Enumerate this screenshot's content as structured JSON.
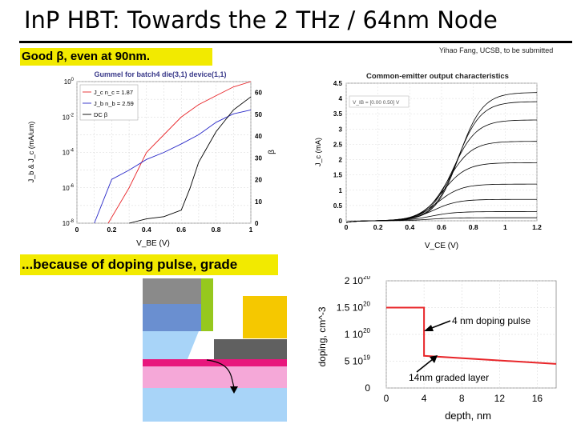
{
  "slide": {
    "title": "InP HBT: Towards the 2 THz / 64nm Node",
    "caption_top": "Good β, even at 90nm.",
    "caption_bottom": "...because of doping pulse, grade",
    "credit": "Yihao Fang, UCSB, to be submitted"
  },
  "colors": {
    "highlight": "#f2ea00",
    "red_series": "#e8262a",
    "blue_series": "#2a2ac8",
    "black_series": "#000000",
    "layer_grey_top": "#8a8a8a",
    "layer_blue": "#6a8fd0",
    "layer_green": "#96c81e",
    "layer_yellow": "#f5c800",
    "layer_lightblue": "#a8d4f8",
    "layer_dark": "#606060",
    "layer_magenta": "#e8177d",
    "layer_pink": "#f5a8d8"
  },
  "chart_data": [
    {
      "type": "line",
      "title": "Gummel for batch4 die(3,1) device(1,1)",
      "xlabel": "V_BE (V)",
      "ylabel": "J_b & J_c (mA/um)",
      "y2label": "β",
      "xlim": [
        0,
        1
      ],
      "y_scale": "log",
      "x_ticks": [
        "0",
        "0.2",
        "0.4",
        "0.6",
        "0.8",
        "1"
      ],
      "y_ticks": [
        "10^0",
        "10^-2",
        "10^-4",
        "10^-6",
        "10^-8"
      ],
      "y2_ticks": [
        "0",
        "10",
        "20",
        "30",
        "40",
        "50",
        "60"
      ],
      "y2lim": [
        0,
        65
      ],
      "legend_position": "top-left",
      "series": [
        {
          "name": "J_c, n_c = 1.87",
          "legend_label": "J_c n_c = 1.87",
          "color": "red",
          "axis": "left",
          "x": [
            0.18,
            0.3,
            0.4,
            0.5,
            0.6,
            0.7,
            0.8,
            0.9,
            1.0
          ],
          "y": [
            1e-08,
            1e-06,
            0.0001,
            0.001,
            0.01,
            0.05,
            0.16,
            0.5,
            1
          ]
        },
        {
          "name": "J_b, n_b = 2.59",
          "legend_label": "J_b n_b = 2.59",
          "color": "blue",
          "axis": "left",
          "x": [
            0.1,
            0.2,
            0.3,
            0.4,
            0.5,
            0.6,
            0.7,
            0.8,
            0.9,
            1.0
          ],
          "y": [
            1e-08,
            3e-06,
            1e-05,
            4e-05,
            0.0001,
            0.0003,
            0.001,
            0.005,
            0.015,
            0.025
          ]
        },
        {
          "name": "DC β",
          "legend_label": "DC β",
          "color": "black",
          "axis": "right",
          "x": [
            0.3,
            0.4,
            0.5,
            0.6,
            0.65,
            0.7,
            0.8,
            0.9,
            1.0
          ],
          "y": [
            0,
            2,
            3,
            6,
            16,
            28,
            42,
            52,
            58
          ]
        }
      ]
    },
    {
      "type": "line",
      "title": "Common-emitter output characteristics",
      "xlabel": "V_CE (V)",
      "ylabel": "J_c (mA)",
      "xlim": [
        0,
        1.2
      ],
      "ylim": [
        0,
        4.5
      ],
      "x_ticks": [
        "0",
        "0.2",
        "0.4",
        "0.6",
        "0.8",
        "1",
        "1.2"
      ],
      "y_ticks": [
        "0",
        "0.5",
        "1",
        "1.5",
        "2",
        "2.5",
        "3",
        "3.5",
        "4",
        "4.5"
      ],
      "legend_position": "top-left",
      "legend_text": "V_IB = [0.00 0.50] V",
      "curve_saturation_levels": [
        0.1,
        0.3,
        0.7,
        1.2,
        1.9,
        2.6,
        3.3,
        3.9,
        4.2
      ]
    },
    {
      "type": "line",
      "xlabel": "depth, nm",
      "ylabel": "doping, cm^-3",
      "xlim": [
        0,
        18
      ],
      "ylim": [
        0,
        2e+20
      ],
      "x_ticks": [
        "0",
        "4",
        "8",
        "12",
        "16"
      ],
      "y_ticks": [
        "0",
        "5 10^19",
        "1 10^20",
        "1.5 10^20",
        "2 10^20"
      ],
      "annotations": [
        "4 nm  doping pulse",
        "14nm graded layer"
      ],
      "series": [
        {
          "color": "red",
          "x": [
            0,
            4,
            4,
            18
          ],
          "y": [
            1.5e+20,
            1.5e+20,
            6e+19,
            4.5e+19
          ]
        }
      ]
    }
  ]
}
